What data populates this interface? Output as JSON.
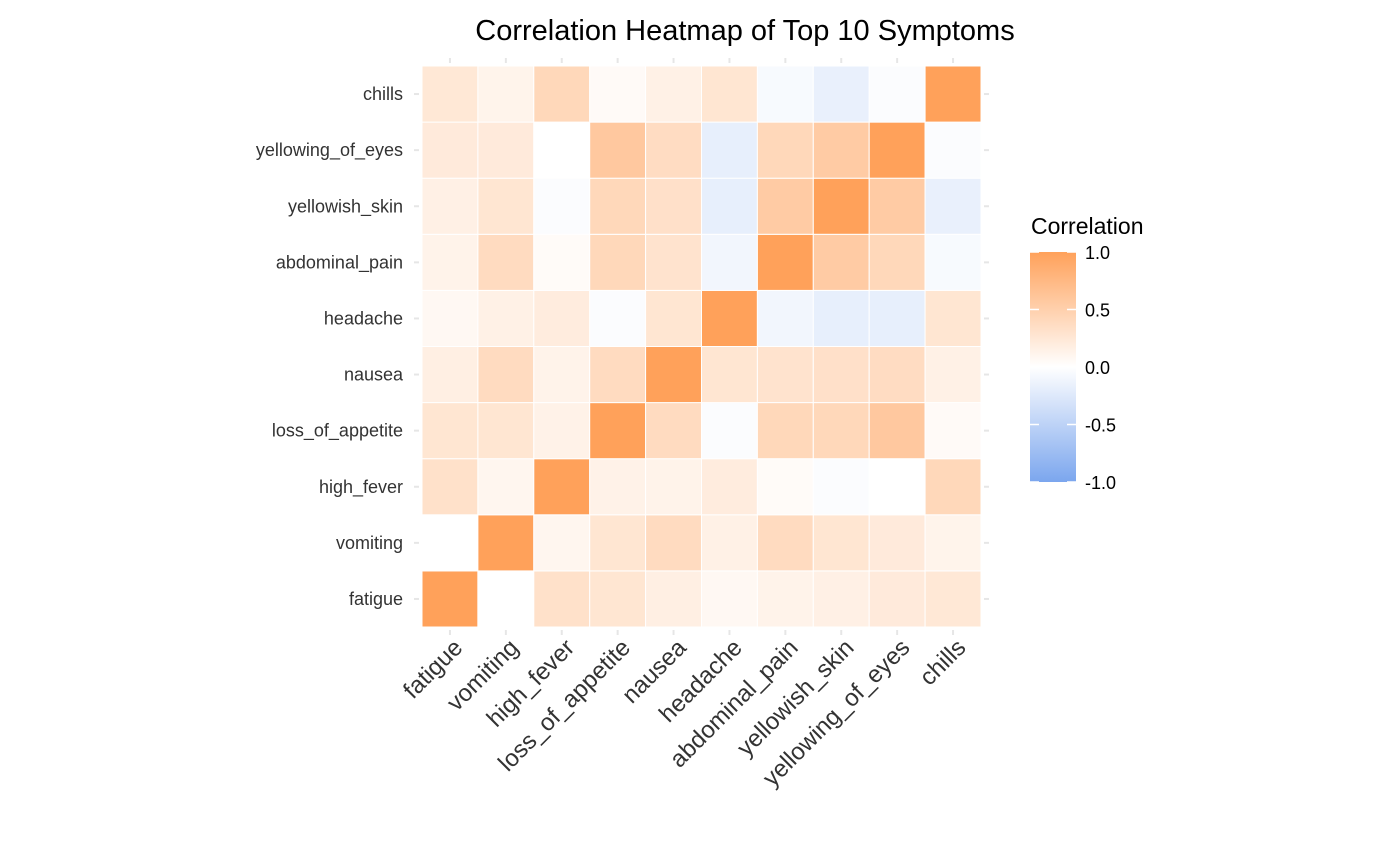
{
  "chart_data": {
    "type": "heatmap",
    "title": "Correlation Heatmap of Top 10 Symptoms",
    "xlabel": "",
    "ylabel": "",
    "x": [
      "fatigue",
      "vomiting",
      "high_fever",
      "loss_of_appetite",
      "nausea",
      "headache",
      "abdominal_pain",
      "yellowish_skin",
      "yellowing_of_eyes",
      "chills"
    ],
    "y": [
      "fatigue",
      "vomiting",
      "high_fever",
      "loss_of_appetite",
      "nausea",
      "headache",
      "abdominal_pain",
      "yellowish_skin",
      "yellowing_of_eyes",
      "chills"
    ],
    "values": [
      [
        1.0,
        0.0,
        0.32,
        0.27,
        0.17,
        0.07,
        0.13,
        0.16,
        0.22,
        0.25
      ],
      [
        0.0,
        1.0,
        0.1,
        0.27,
        0.38,
        0.15,
        0.38,
        0.27,
        0.22,
        0.12
      ],
      [
        0.32,
        0.1,
        1.0,
        0.14,
        0.13,
        0.2,
        0.04,
        -0.03,
        0.0,
        0.42
      ],
      [
        0.27,
        0.27,
        0.14,
        1.0,
        0.38,
        -0.03,
        0.42,
        0.42,
        0.58,
        0.05
      ],
      [
        0.17,
        0.38,
        0.13,
        0.38,
        1.0,
        0.27,
        0.3,
        0.33,
        0.37,
        0.15
      ],
      [
        0.07,
        0.15,
        0.2,
        -0.03,
        0.27,
        1.0,
        -0.1,
        -0.18,
        -0.18,
        0.27
      ],
      [
        0.13,
        0.38,
        0.04,
        0.42,
        0.3,
        -0.1,
        1.0,
        0.55,
        0.42,
        -0.06
      ],
      [
        0.16,
        0.27,
        -0.03,
        0.42,
        0.33,
        -0.18,
        0.55,
        1.0,
        0.55,
        -0.17
      ],
      [
        0.22,
        0.22,
        0.0,
        0.58,
        0.37,
        -0.18,
        0.42,
        0.55,
        1.0,
        -0.03
      ],
      [
        0.25,
        0.12,
        0.42,
        0.05,
        0.15,
        0.27,
        -0.06,
        -0.17,
        -0.03,
        1.0
      ]
    ],
    "color_scale": {
      "min": -1.0,
      "mid": 0.0,
      "max": 1.0,
      "low_color": "#7BA6EE",
      "mid_color": "#FFFFFF",
      "high_color": "#FFA15A"
    },
    "legend": {
      "title": "Correlation",
      "position": "right",
      "ticks": [
        "1.0",
        "0.5",
        "0.0",
        "-0.5",
        "-1.0"
      ],
      "tick_values": [
        1.0,
        0.5,
        0.0,
        -0.5,
        -1.0
      ]
    },
    "grid": false
  }
}
